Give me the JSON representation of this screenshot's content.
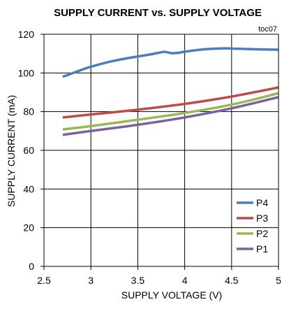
{
  "chart_data": {
    "type": "line",
    "title": "SUPPLY CURRENT vs. SUPPLY VOLTAGE",
    "annotation": "toc07",
    "xlabel": "SUPPLY VOLTAGE (V)",
    "ylabel": "SUPPLY CURRENT (mA)",
    "xlim": [
      2.5,
      5
    ],
    "ylim": [
      0,
      120
    ],
    "xticks": [
      2.5,
      3,
      3.5,
      4,
      4.5,
      5
    ],
    "yticks": [
      0,
      20,
      40,
      60,
      80,
      100,
      120
    ],
    "grid": true,
    "legend_position": "bottom-right",
    "series": [
      {
        "name": "P4",
        "color": "#4a7ebb",
        "x": [
          2.7,
          2.8,
          2.9,
          3.0,
          3.2,
          3.4,
          3.6,
          3.7,
          3.78,
          3.82,
          3.86,
          3.9,
          3.95,
          4.0,
          4.2,
          4.4,
          4.5,
          4.7,
          5.0
        ],
        "y": [
          98.0,
          99.8,
          101.6,
          103.2,
          105.8,
          107.7,
          109.3,
          110.2,
          110.9,
          110.6,
          110.2,
          110.3,
          110.5,
          111.0,
          112.2,
          112.7,
          112.6,
          112.3,
          112.0
        ]
      },
      {
        "name": "P3",
        "color": "#be4b48",
        "x": [
          2.7,
          3.0,
          3.5,
          4.0,
          4.5,
          5.0
        ],
        "y": [
          77.0,
          78.5,
          81.0,
          84.0,
          87.8,
          92.5
        ]
      },
      {
        "name": "P2",
        "color": "#98b954",
        "x": [
          2.7,
          3.0,
          3.5,
          4.0,
          4.5,
          5.0
        ],
        "y": [
          70.8,
          72.5,
          75.8,
          79.3,
          83.6,
          89.5
        ]
      },
      {
        "name": "P1",
        "color": "#7d60a0",
        "x": [
          2.7,
          3.0,
          3.5,
          4.0,
          4.5,
          5.0
        ],
        "y": [
          68.0,
          70.0,
          73.2,
          77.0,
          81.7,
          87.5
        ]
      }
    ]
  },
  "colors": {
    "frame": "#000000",
    "grid": "#000000",
    "text": "#000000",
    "background": "#ffffff"
  }
}
